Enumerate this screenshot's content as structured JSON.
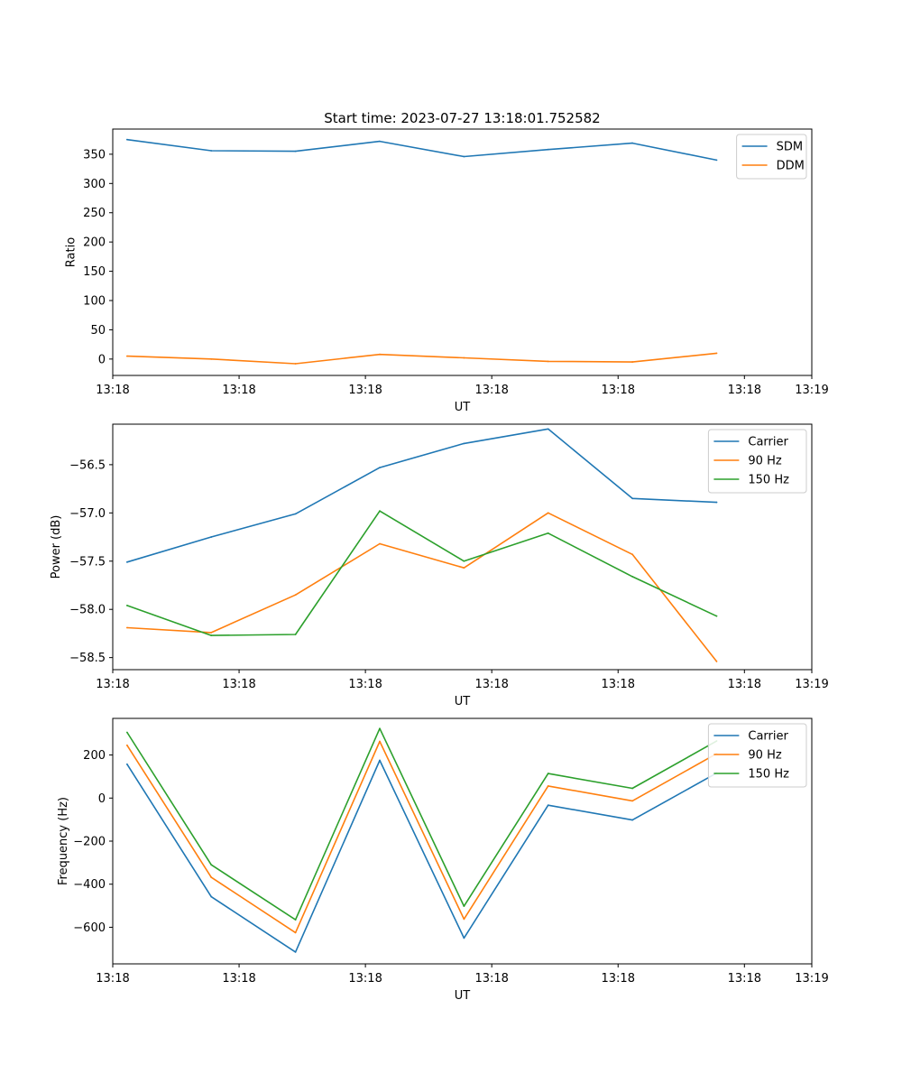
{
  "figure": {
    "title": "Start time: 2023-07-27 13:18:01.752582"
  },
  "chart_data": [
    {
      "type": "line",
      "title": "Start time: 2023-07-27 13:18:01.752582",
      "xlabel": "UT",
      "ylabel": "Ratio",
      "x": [
        1,
        2,
        3,
        4,
        5,
        6,
        7,
        8
      ],
      "xlim": [
        0.83,
        9.13
      ],
      "x_ticks": [
        {
          "value": 0.83,
          "label": "13:18"
        },
        {
          "value": 2.33,
          "label": "13:18"
        },
        {
          "value": 3.83,
          "label": "13:18"
        },
        {
          "value": 5.33,
          "label": "13:18"
        },
        {
          "value": 6.83,
          "label": "13:18"
        },
        {
          "value": 8.33,
          "label": "13:18"
        },
        {
          "value": 9.13,
          "label": "13:19"
        }
      ],
      "ylim": [
        -28,
        393
      ],
      "y_ticks": [
        {
          "value": 0,
          "label": "0"
        },
        {
          "value": 50,
          "label": "50"
        },
        {
          "value": 100,
          "label": "100"
        },
        {
          "value": 150,
          "label": "150"
        },
        {
          "value": 200,
          "label": "200"
        },
        {
          "value": 250,
          "label": "250"
        },
        {
          "value": 300,
          "label": "300"
        },
        {
          "value": 350,
          "label": "350"
        }
      ],
      "legend_position": "top-right",
      "series": [
        {
          "name": "SDM",
          "color": "#1f77b4",
          "values": [
            375,
            356,
            355,
            372,
            346,
            358,
            369,
            340
          ]
        },
        {
          "name": "DDM",
          "color": "#ff7f0e",
          "values": [
            5,
            0,
            -8,
            8,
            2,
            -4,
            -5,
            10
          ]
        }
      ]
    },
    {
      "type": "line",
      "title": "",
      "xlabel": "UT",
      "ylabel": "Power (dB)",
      "x": [
        1,
        2,
        3,
        4,
        5,
        6,
        7,
        8
      ],
      "xlim": [
        0.83,
        9.13
      ],
      "x_ticks": [
        {
          "value": 0.83,
          "label": "13:18"
        },
        {
          "value": 2.33,
          "label": "13:18"
        },
        {
          "value": 3.83,
          "label": "13:18"
        },
        {
          "value": 5.33,
          "label": "13:18"
        },
        {
          "value": 6.83,
          "label": "13:18"
        },
        {
          "value": 8.33,
          "label": "13:18"
        },
        {
          "value": 9.13,
          "label": "13:19"
        }
      ],
      "ylim": [
        -58.625,
        -56.08
      ],
      "y_ticks": [
        {
          "value": -58.5,
          "label": "−58.5"
        },
        {
          "value": -58.0,
          "label": "−58.0"
        },
        {
          "value": -57.5,
          "label": "−57.5"
        },
        {
          "value": -57.0,
          "label": "−57.0"
        },
        {
          "value": -56.5,
          "label": "−56.5"
        }
      ],
      "legend_position": "top-right",
      "series": [
        {
          "name": "Carrier",
          "color": "#1f77b4",
          "values": [
            -57.51,
            -57.25,
            -57.01,
            -56.53,
            -56.28,
            -56.13,
            -56.85,
            -56.89
          ]
        },
        {
          "name": "90 Hz",
          "color": "#ff7f0e",
          "values": [
            -58.19,
            -58.24,
            -57.85,
            -57.32,
            -57.57,
            -57.0,
            -57.43,
            -58.54
          ]
        },
        {
          "name": "150 Hz",
          "color": "#2ca02c",
          "values": [
            -57.96,
            -58.27,
            -58.26,
            -56.98,
            -57.5,
            -57.21,
            -57.66,
            -58.07
          ]
        }
      ]
    },
    {
      "type": "line",
      "title": "",
      "xlabel": "UT",
      "ylabel": "Frequency (Hz)",
      "x": [
        1,
        2,
        3,
        4,
        5,
        6,
        7,
        8
      ],
      "xlim": [
        0.83,
        9.13
      ],
      "x_ticks": [
        {
          "value": 0.83,
          "label": "13:18"
        },
        {
          "value": 2.33,
          "label": "13:18"
        },
        {
          "value": 3.83,
          "label": "13:18"
        },
        {
          "value": 5.33,
          "label": "13:18"
        },
        {
          "value": 6.83,
          "label": "13:18"
        },
        {
          "value": 8.33,
          "label": "13:18"
        },
        {
          "value": 9.13,
          "label": "13:19"
        }
      ],
      "ylim": [
        -770,
        370
      ],
      "y_ticks": [
        {
          "value": -600,
          "label": "−600"
        },
        {
          "value": -400,
          "label": "−400"
        },
        {
          "value": -200,
          "label": "−200"
        },
        {
          "value": 0,
          "label": "0"
        },
        {
          "value": 200,
          "label": "200"
        }
      ],
      "legend_position": "top-right",
      "series": [
        {
          "name": "Carrier",
          "color": "#1f77b4",
          "values": [
            157,
            -458,
            -715,
            175,
            -650,
            -33,
            -102,
            116
          ]
        },
        {
          "name": "90 Hz",
          "color": "#ff7f0e",
          "values": [
            245,
            -368,
            -625,
            263,
            -562,
            56,
            -13,
            206
          ]
        },
        {
          "name": "150 Hz",
          "color": "#2ca02c",
          "values": [
            305,
            -310,
            -565,
            323,
            -502,
            114,
            45,
            265
          ]
        }
      ]
    }
  ]
}
